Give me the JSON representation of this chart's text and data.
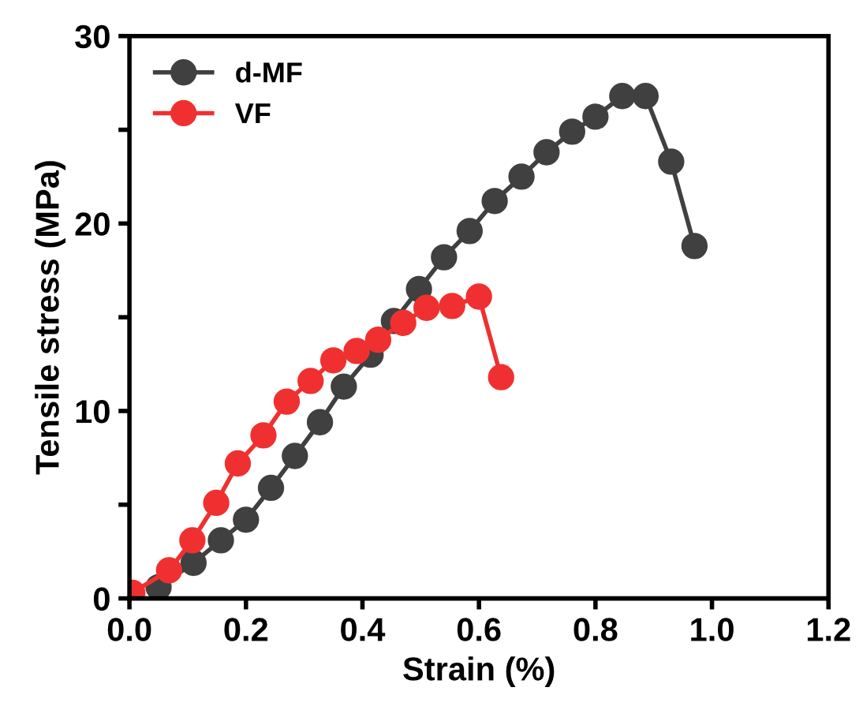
{
  "chart_data": {
    "type": "line",
    "xlabel": "Strain (%)",
    "ylabel": "Tensile stress (MPa)",
    "series": [
      {
        "name": "d-MF",
        "color": "#404040",
        "x": [
          0.05,
          0.11,
          0.157,
          0.2,
          0.243,
          0.284,
          0.327,
          0.368,
          0.414,
          0.454,
          0.497,
          0.54,
          0.584,
          0.627,
          0.673,
          0.716,
          0.76,
          0.8,
          0.846,
          0.886,
          0.93,
          0.97
        ],
        "values": [
          0.6,
          1.9,
          3.1,
          4.2,
          5.9,
          7.6,
          9.4,
          11.3,
          13.0,
          14.8,
          16.5,
          18.2,
          19.6,
          21.2,
          22.5,
          23.8,
          24.9,
          25.7,
          26.8,
          26.8,
          23.3,
          18.8
        ]
      },
      {
        "name": "VF",
        "color": "#f03030",
        "x": [
          0.005,
          0.068,
          0.108,
          0.149,
          0.186,
          0.23,
          0.27,
          0.311,
          0.35,
          0.39,
          0.427,
          0.47,
          0.51,
          0.554,
          0.6,
          0.638
        ],
        "values": [
          0.3,
          1.5,
          3.1,
          5.1,
          7.2,
          8.7,
          10.5,
          11.6,
          12.7,
          13.2,
          13.8,
          14.7,
          15.5,
          15.6,
          16.1,
          11.8
        ]
      }
    ],
    "xlim": [
      0,
      1.2
    ],
    "ylim": [
      0,
      30
    ],
    "xticks": [
      {
        "value": 0,
        "label": "0.0"
      },
      {
        "value": 0.2,
        "label": "0.2"
      },
      {
        "value": 0.4,
        "label": "0.4"
      },
      {
        "value": 0.6,
        "label": "0.6"
      },
      {
        "value": 0.8,
        "label": "0.8"
      },
      {
        "value": 1,
        "label": "1.0"
      },
      {
        "value": 1.2,
        "label": "1.2"
      }
    ],
    "yticks": [
      0,
      {
        "value": 5,
        "label": null
      },
      10,
      {
        "value": 15,
        "label": null
      },
      20,
      {
        "value": 25,
        "label": null
      },
      30
    ],
    "marker": "circle",
    "line_style": "solid",
    "legend": "top left",
    "grid": false
  }
}
